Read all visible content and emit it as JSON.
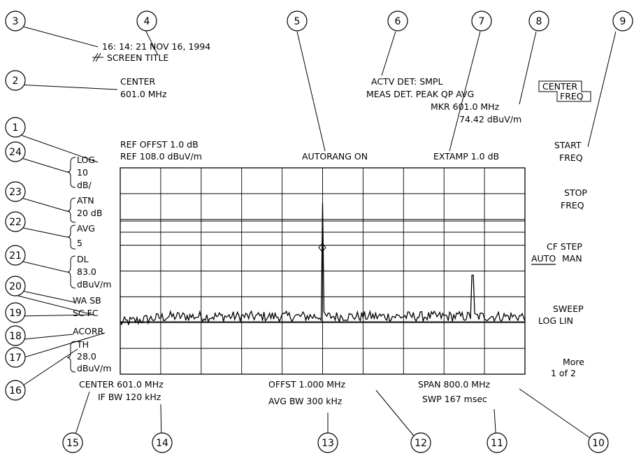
{
  "header": {
    "timestamp": "16: 14: 21  NOV  16,  1994",
    "screen_title": "SCREEN  TITLE",
    "center_label": "CENTER",
    "center_value": "601.0  MHz",
    "actv_det": "ACTV  DET:  SMPL",
    "meas_det": "MEAS  DET.  PEAK  QP  AVG",
    "marker_freq": "MKR  601.0  MHz",
    "marker_level": "74.42  dBuV/m",
    "ref_offset": "REF  OFFST  1.0  dB",
    "ref_level": "REF  108.0  dBuV/m",
    "autorange": "AUTORANG  ON",
    "extamp": "EXTAMP  1.0  dB"
  },
  "left_annotations": {
    "scale": [
      "LOG",
      "10",
      "dB/"
    ],
    "attenuation": [
      "ATN",
      "20  dB"
    ],
    "average": [
      "AVG",
      "5"
    ],
    "display_line": [
      "DL",
      "83.0",
      "dBuV/m"
    ],
    "wa_sb": "WA  SB",
    "sc_fc": "SC  FC",
    "acorr": "ACORR",
    "threshold": [
      "TH",
      "28.0",
      "dBuV/m"
    ]
  },
  "softkeys": {
    "center_freq": [
      "CENTER",
      "FREQ"
    ],
    "start_freq": [
      "START",
      "FREQ"
    ],
    "stop_freq": [
      "STOP",
      "FREQ"
    ],
    "cf_step": [
      "CF  STEP",
      "AUTO",
      "MAN"
    ],
    "sweep": [
      "SWEEP",
      "LOG  LIN"
    ],
    "more": [
      "More",
      "1  of  2"
    ]
  },
  "footer": {
    "center": "CENTER  601.0  MHz",
    "if_bw": "IF  BW  120  kHz",
    "offset": "OFFST  1.000  MHz",
    "avg_bw": "AVG  BW  300  kHz",
    "span": "SPAN  800.0  MHz",
    "sweep_time": "SWP  167  msec"
  },
  "callouts": [
    "1",
    "2",
    "3",
    "4",
    "5",
    "6",
    "7",
    "8",
    "9",
    "10",
    "11",
    "12",
    "13",
    "14",
    "15",
    "16",
    "17",
    "18",
    "19",
    "20",
    "21",
    "22",
    "23",
    "24"
  ],
  "graticule": {
    "divisions_x": 10,
    "divisions_y": 8
  },
  "trace": {
    "noise_floor_fraction": 0.28,
    "peaks": [
      {
        "position_fraction": 0.5,
        "level_fraction": 0.83
      },
      {
        "position_fraction": 0.87,
        "level_fraction": 0.48
      }
    ]
  }
}
